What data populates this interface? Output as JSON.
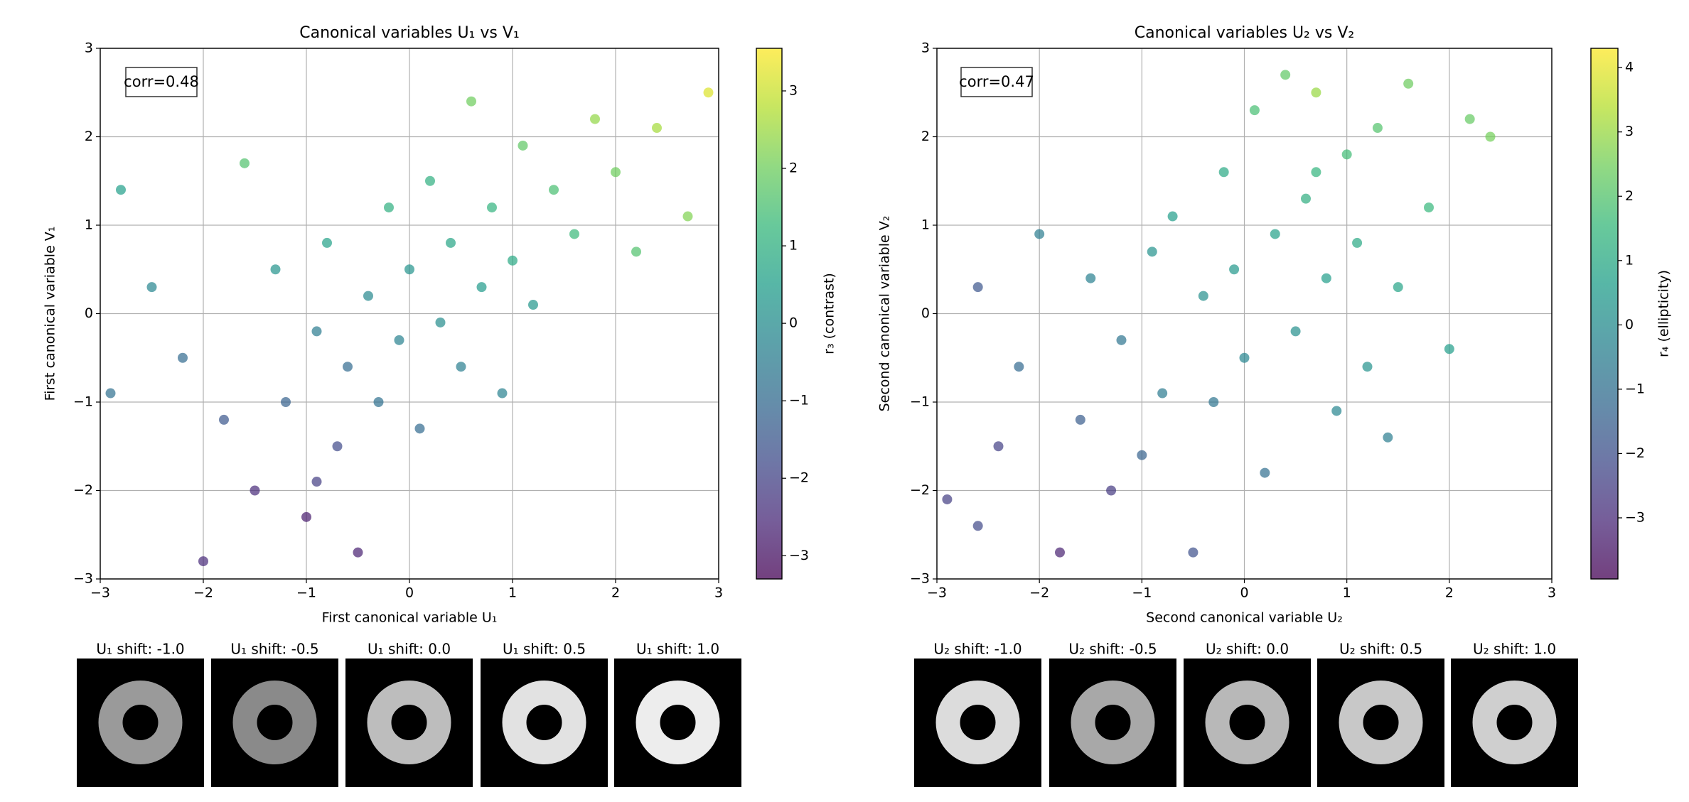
{
  "chart_data": [
    {
      "type": "scatter",
      "title": "Canonical variables U₁ vs V₁",
      "xlabel": "First canonical variable U₁",
      "ylabel": "First canonical variable V₁",
      "colorbar_label": "r₃ (contrast)",
      "annotation": "corr=0.48",
      "cmap": "viridis",
      "grid": true,
      "x": [
        -2.8,
        -2.5,
        -2.2,
        -2.0,
        -1.8,
        -1.6,
        -1.5,
        -1.3,
        -1.2,
        -1.0,
        -0.9,
        -0.8,
        -0.7,
        -0.6,
        -0.5,
        -0.4,
        -0.3,
        -0.2,
        -0.1,
        0,
        0.1,
        0.2,
        0.3,
        0.4,
        0.5,
        0.6,
        0.7,
        0.8,
        0.9,
        1.0,
        1.1,
        1.2,
        1.4,
        1.6,
        1.8,
        2.0,
        2.2,
        2.4,
        2.7,
        2.9,
        -2.9,
        -0.9
      ],
      "y": [
        1.4,
        0.3,
        -0.5,
        -2.8,
        -1.2,
        1.7,
        -2.0,
        0.5,
        -1.0,
        -2.3,
        -0.2,
        0.8,
        -1.5,
        -0.6,
        -2.7,
        0.2,
        -1.0,
        1.2,
        -0.3,
        0.5,
        -1.3,
        1.5,
        -0.1,
        0.8,
        -0.6,
        2.4,
        0.3,
        1.2,
        -0.9,
        0.6,
        1.9,
        0.1,
        1.4,
        0.9,
        2.2,
        1.6,
        0.7,
        2.1,
        1.1,
        2.5,
        -0.9,
        -1.9
      ],
      "c": [
        0.5,
        -0.2,
        -1,
        -2.5,
        -1.5,
        1.6,
        -2.5,
        0.2,
        -1.2,
        -2.8,
        -0.5,
        0.6,
        -1.8,
        -1,
        -2.7,
        -0.1,
        -0.8,
        1.0,
        -0.3,
        0.2,
        -1.0,
        1.0,
        0,
        0.7,
        -0.4,
        2.0,
        0.4,
        1.1,
        -0.3,
        0.8,
        1.8,
        0.3,
        1.5,
        1.3,
        2.4,
        2.0,
        1.6,
        2.6,
        2.2,
        3.2,
        -0.8,
        -2.1
      ],
      "xlim": [
        -3,
        3
      ],
      "ylim": [
        -3,
        3
      ],
      "xticks": [
        {
          "value": -3,
          "label": "−3"
        },
        {
          "value": -2,
          "label": "−2"
        },
        {
          "value": -1,
          "label": "−1"
        },
        0,
        1,
        2,
        3
      ],
      "yticks": [
        {
          "value": -3,
          "label": "−3"
        },
        {
          "value": -2,
          "label": "−2"
        },
        {
          "value": -1,
          "label": "−1"
        },
        0,
        1,
        2,
        3
      ],
      "clim": [
        -3.3,
        3.55
      ],
      "cticks": [
        {
          "value": -3,
          "label": "−3"
        },
        {
          "value": -2,
          "label": "−2"
        },
        {
          "value": -1,
          "label": "−1"
        },
        0,
        1,
        2,
        3
      ]
    },
    {
      "type": "scatter",
      "title": "Canonical variables U₂ vs V₂",
      "xlabel": "Second canonical variable U₂",
      "ylabel": "Second canonical variable V₂",
      "colorbar_label": "r₄ (ellipticity)",
      "annotation": "corr=0.47",
      "cmap": "viridis",
      "grid": true,
      "x": [
        -2.9,
        -2.6,
        -2.4,
        -2.2,
        -2.0,
        -1.8,
        -1.6,
        -1.5,
        -1.3,
        -1.2,
        -1.0,
        -0.9,
        -0.8,
        -0.7,
        -0.5,
        -0.4,
        -0.3,
        -0.2,
        -0.1,
        0,
        0.1,
        0.2,
        0.3,
        0.4,
        0.5,
        0.6,
        0.7,
        0.8,
        0.9,
        1.0,
        1.1,
        1.2,
        1.3,
        1.4,
        1.5,
        1.6,
        1.8,
        2.0,
        2.2,
        2.4,
        -2.6,
        0.7
      ],
      "y": [
        -2.1,
        0.3,
        -1.5,
        -0.6,
        0.9,
        -2.7,
        -1.2,
        0.4,
        -2.0,
        -0.3,
        -1.6,
        0.7,
        -0.9,
        1.1,
        -2.7,
        0.2,
        -1.0,
        1.6,
        0.5,
        -0.5,
        2.3,
        -1.8,
        0.9,
        2.7,
        -0.2,
        1.3,
        2.5,
        0.4,
        -1.1,
        1.8,
        0.8,
        -0.6,
        2.1,
        -1.4,
        0.3,
        2.6,
        1.2,
        -0.4,
        2.2,
        2.0,
        -2.4,
        1.6
      ],
      "c": [
        -2.5,
        -1.8,
        -2.4,
        -1.2,
        -0.5,
        -3.2,
        -1.6,
        -0.4,
        -2.6,
        -0.8,
        -1.4,
        0.2,
        -0.6,
        0.6,
        -2.0,
        0.1,
        -0.8,
        1.0,
        0.4,
        -0.2,
        1.8,
        -1.0,
        0.7,
        2.2,
        0.1,
        1.2,
        3.0,
        0.6,
        -0.2,
        1.7,
        1.0,
        0.2,
        2.0,
        -0.5,
        0.8,
        2.4,
        1.5,
        0.6,
        2.3,
        2.5,
        -2.2,
        1.4
      ],
      "xlim": [
        -3,
        3
      ],
      "ylim": [
        -3,
        3
      ],
      "xticks": [
        {
          "value": -3,
          "label": "−3"
        },
        {
          "value": -2,
          "label": "−2"
        },
        {
          "value": -1,
          "label": "−1"
        },
        0,
        1,
        2,
        3
      ],
      "yticks": [
        {
          "value": -3,
          "label": "−3"
        },
        {
          "value": -2,
          "label": "−2"
        },
        {
          "value": -1,
          "label": "−1"
        },
        0,
        1,
        2,
        3
      ],
      "clim": [
        -3.95,
        4.3
      ],
      "cticks": [
        {
          "value": -3,
          "label": "−3"
        },
        {
          "value": -2,
          "label": "−2"
        },
        {
          "value": -1,
          "label": "−1"
        },
        0,
        1,
        2,
        3,
        4
      ]
    }
  ],
  "thumbnail_rows": [
    [
      "U₁ shift: -1.0",
      "U₁ shift: -0.5",
      "U₁ shift: 0.0",
      "U₁ shift: 0.5",
      "U₁ shift: 1.0"
    ],
    [
      "U₂ shift: -1.0",
      "U₂ shift: -0.5",
      "U₂ shift: 0.0",
      "U₂ shift: 0.5",
      "U₂ shift: 1.0"
    ]
  ]
}
